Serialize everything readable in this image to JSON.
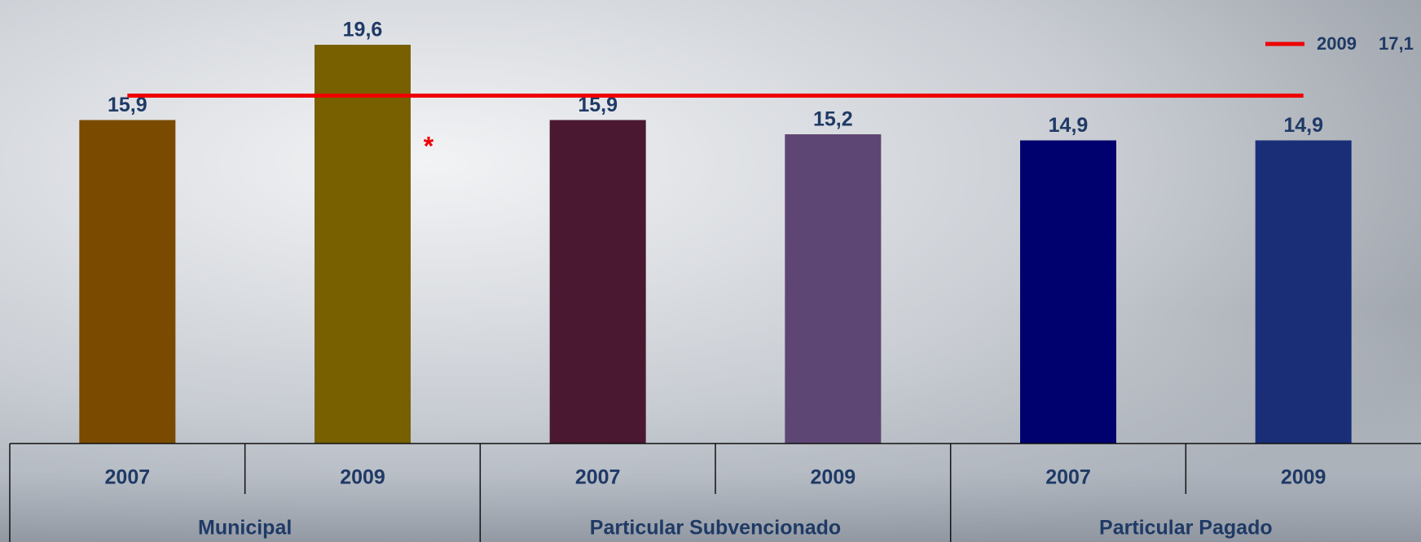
{
  "chart_data": {
    "type": "bar",
    "categories": [
      "2007",
      "2009",
      "2007",
      "2009",
      "2007",
      "2009"
    ],
    "groups": [
      "Municipal",
      "Particular Subvencionado",
      "Particular Pagado"
    ],
    "values": [
      15.9,
      19.6,
      15.9,
      15.2,
      14.9,
      14.9
    ],
    "value_labels": [
      "15,9",
      "19,6",
      "15,9",
      "15,2",
      "14,9",
      "14,9"
    ],
    "colors": [
      "#7a4a00",
      "#786000",
      "#4a1830",
      "#5e4674",
      "#00006e",
      "#1a2e78"
    ],
    "ylim": [
      0,
      21.8
    ],
    "reference_line": {
      "name": "2009",
      "value": 17.1,
      "value_label": "17,1",
      "color": "#ee0000"
    },
    "annotation": "*",
    "legend": "top-right"
  }
}
